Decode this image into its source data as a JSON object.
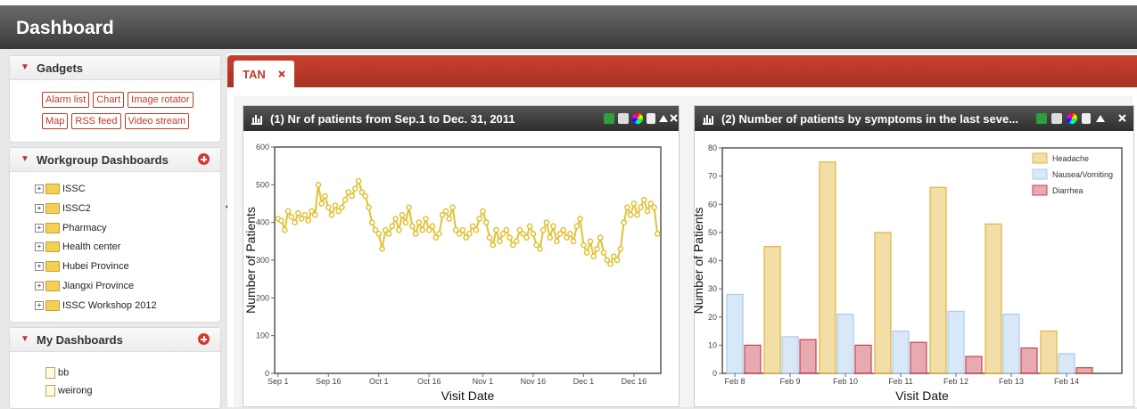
{
  "header": {
    "title": "Dashboard"
  },
  "sidebar": {
    "gadgets": {
      "title": "Gadgets",
      "items": [
        "Alarm list",
        "Chart",
        "Image rotator",
        "Map",
        "RSS feed",
        "Video stream"
      ]
    },
    "workgroup": {
      "title": "Workgroup Dashboards",
      "items": [
        "ISSC",
        "ISSC2",
        "Pharmacy",
        "Health center",
        "Hubei Province",
        "Jiangxi Province",
        "ISSC Workshop 2012"
      ]
    },
    "my": {
      "title": "My Dashboards",
      "items": [
        "bb",
        "weirong"
      ]
    }
  },
  "tab": {
    "label": "TAN"
  },
  "chart_data": [
    {
      "type": "line",
      "title": "(1) Nr of patients from Sep.1 to Dec. 31, 2011",
      "x_label": "Visit Date",
      "y_label": "Number of Patients",
      "color": "#e0c236",
      "x": [
        0,
        1,
        2,
        3,
        4,
        5,
        6,
        7,
        8,
        9,
        10,
        11,
        12,
        13,
        14,
        15,
        16,
        17,
        18,
        19,
        20,
        21,
        22,
        23,
        24,
        25,
        26,
        27,
        28,
        29,
        30,
        31,
        32,
        33,
        34,
        35,
        36,
        37,
        38,
        39,
        40,
        41,
        42,
        43,
        44,
        45,
        46,
        47,
        48,
        49,
        50,
        51,
        52,
        53,
        54,
        55,
        56,
        57,
        58,
        59,
        60,
        61,
        62,
        63,
        64,
        65,
        66,
        67,
        68,
        69,
        70,
        71,
        72,
        73,
        74,
        75,
        76,
        77,
        78,
        79,
        80,
        81,
        82,
        83,
        84,
        85,
        86,
        87,
        88,
        89,
        90,
        91,
        92,
        93,
        94,
        95,
        96,
        97,
        98,
        99,
        100,
        101,
        102,
        103,
        104,
        105,
        106,
        107,
        108,
        109,
        110,
        111,
        112,
        113
      ],
      "values": [
        410,
        405,
        380,
        430,
        415,
        400,
        425,
        410,
        420,
        405,
        430,
        420,
        500,
        450,
        470,
        440,
        420,
        445,
        430,
        440,
        460,
        480,
        470,
        490,
        510,
        480,
        470,
        440,
        400,
        380,
        370,
        330,
        380,
        370,
        390,
        410,
        380,
        420,
        400,
        440,
        390,
        370,
        400,
        380,
        410,
        380,
        390,
        360,
        370,
        420,
        430,
        410,
        440,
        380,
        370,
        380,
        360,
        370,
        390,
        380,
        410,
        430,
        400,
        360,
        340,
        380,
        350,
        370,
        380,
        360,
        340,
        350,
        380,
        370,
        360,
        390,
        370,
        340,
        330,
        380,
        400,
        360,
        390,
        350,
        370,
        380,
        360,
        370,
        350,
        390,
        410,
        340,
        320,
        350,
        310,
        330,
        360,
        320,
        300,
        290,
        310,
        300,
        330,
        400,
        440,
        420,
        450,
        420,
        440,
        460,
        430,
        450,
        440,
        370
      ],
      "xlim": [
        -1,
        114
      ],
      "xticks": [
        {
          "value": 0,
          "label": "Sep 1"
        },
        {
          "value": 15,
          "label": "Sep 16"
        },
        {
          "value": 30,
          "label": "Oct 1"
        },
        {
          "value": 45,
          "label": "Oct 16"
        },
        {
          "value": 61,
          "label": "Nov 1"
        },
        {
          "value": 76,
          "label": "Nov 16"
        },
        {
          "value": 91,
          "label": "Dec 1"
        },
        {
          "value": 106,
          "label": "Dec 16"
        }
      ],
      "ylim": [
        0,
        600
      ],
      "yticks": [
        0,
        100,
        200,
        300,
        400,
        500,
        600
      ]
    },
    {
      "type": "bar",
      "title": "(2) Number of patients by symptoms in the last seve...",
      "x_label": "Visit Date",
      "y_label": "Number of Patients",
      "legend": "upper right",
      "categories": [
        "Feb 8",
        "Feb 9",
        "Feb 10",
        "Feb 11",
        "Feb 12",
        "Feb 13",
        "Feb 14"
      ],
      "series": [
        {
          "name": "Headache",
          "color": "#e2b53a",
          "values": [
            null,
            45,
            75,
            50,
            66,
            53,
            15
          ]
        },
        {
          "name": "Nausea/Vomiting",
          "color": "#a9cdee",
          "values": [
            28,
            13,
            21,
            15,
            22,
            21,
            7
          ]
        },
        {
          "name": "Diarrhea",
          "color": "#c9424f",
          "values": [
            10,
            12,
            10,
            11,
            6,
            9,
            2
          ]
        }
      ],
      "ylim": [
        0,
        80
      ],
      "yticks": [
        0,
        10,
        20,
        30,
        40,
        50,
        60,
        70,
        80
      ]
    }
  ]
}
